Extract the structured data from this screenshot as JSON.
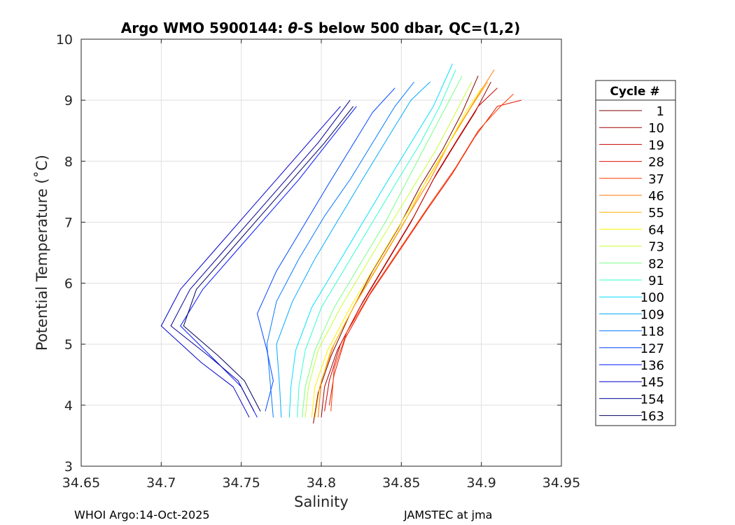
{
  "chart_data": {
    "type": "line",
    "title_prefix": "Argo WMO 5900144: ",
    "title_theta": "θ",
    "title_suffix": "-S below 500 dbar,  QC=(1,2)",
    "xlabel": "Salinity",
    "ylabel": "Potential Temperature (˚C)",
    "xlim": [
      34.65,
      34.95
    ],
    "ylim": [
      3,
      10
    ],
    "xticks": [
      34.65,
      34.7,
      34.75,
      34.8,
      34.85,
      34.9,
      34.95
    ],
    "xtick_labels": [
      "34.65",
      "34.7",
      "34.75",
      "34.8",
      "34.85",
      "34.9",
      "34.95"
    ],
    "yticks": [
      3,
      4,
      5,
      6,
      7,
      8,
      9,
      10
    ],
    "ytick_labels": [
      "3",
      "4",
      "5",
      "6",
      "7",
      "8",
      "9",
      "10"
    ],
    "grid": true,
    "legend_title": "Cycle #",
    "legend_position": "right-outside",
    "cycles": [
      "1",
      "10",
      "19",
      "28",
      "37",
      "46",
      "55",
      "64",
      "73",
      "82",
      "91",
      "100",
      "109",
      "118",
      "127",
      "136",
      "145",
      "154",
      "163"
    ],
    "cycle_colors": [
      "#7f0000",
      "#a00000",
      "#c80000",
      "#e61400",
      "#ff3c00",
      "#ff7800",
      "#ffb400",
      "#fff000",
      "#c8ff37",
      "#78ff87",
      "#32ffcd",
      "#00e1ff",
      "#00aaff",
      "#0078ff",
      "#0046ff",
      "#0014ff",
      "#0000cd",
      "#000096",
      "#00005f"
    ],
    "series": [
      {
        "name": "1",
        "x": [
          34.795,
          34.798,
          34.806,
          34.818,
          34.832,
          34.848,
          34.862,
          34.876,
          34.888,
          34.898
        ],
        "y": [
          3.7,
          4.2,
          4.8,
          5.5,
          6.2,
          6.9,
          7.6,
          8.2,
          8.8,
          9.4
        ]
      },
      {
        "name": "10",
        "x": [
          34.8,
          34.802,
          34.81,
          34.824,
          34.84,
          34.856,
          34.87,
          34.884,
          34.896,
          34.906
        ],
        "y": [
          3.8,
          4.3,
          4.9,
          5.6,
          6.3,
          7.0,
          7.7,
          8.3,
          8.8,
          9.3
        ]
      },
      {
        "name": "19",
        "x": [
          34.802,
          34.805,
          34.812,
          34.826,
          34.842,
          34.858,
          34.872,
          34.886,
          34.898,
          34.91
        ],
        "y": [
          3.9,
          4.4,
          5.0,
          5.7,
          6.4,
          7.1,
          7.8,
          8.4,
          8.9,
          9.2
        ]
      },
      {
        "name": "28",
        "x": [
          34.805,
          34.808,
          34.815,
          34.83,
          34.848,
          34.866,
          34.882,
          34.896,
          34.91,
          34.925
        ],
        "y": [
          4.0,
          4.5,
          5.1,
          5.8,
          6.5,
          7.2,
          7.8,
          8.4,
          8.9,
          9.0
        ]
      },
      {
        "name": "37",
        "x": [
          34.806,
          34.808,
          34.816,
          34.832,
          34.85,
          34.868,
          34.884,
          34.898,
          34.912,
          34.92
        ],
        "y": [
          3.9,
          4.6,
          5.2,
          5.9,
          6.6,
          7.3,
          7.9,
          8.5,
          8.9,
          9.1
        ]
      },
      {
        "name": "46",
        "x": [
          34.798,
          34.8,
          34.808,
          34.822,
          34.838,
          34.854,
          34.868,
          34.882,
          34.896,
          34.908
        ],
        "y": [
          3.8,
          4.4,
          5.0,
          5.7,
          6.4,
          7.1,
          7.7,
          8.4,
          9.0,
          9.5
        ]
      },
      {
        "name": "55",
        "x": [
          34.796,
          34.799,
          34.806,
          34.82,
          34.836,
          34.852,
          34.866,
          34.88,
          34.894,
          34.904
        ],
        "y": [
          3.8,
          4.3,
          4.9,
          5.6,
          6.3,
          7.0,
          7.7,
          8.3,
          8.9,
          9.3
        ]
      },
      {
        "name": "64",
        "x": [
          34.794,
          34.796,
          34.804,
          34.818,
          34.834,
          34.85,
          34.864,
          34.878,
          34.89,
          34.9
        ],
        "y": [
          3.8,
          4.3,
          4.9,
          5.6,
          6.3,
          7.0,
          7.6,
          8.2,
          8.8,
          9.2
        ]
      },
      {
        "name": "73",
        "x": [
          34.79,
          34.792,
          34.798,
          34.812,
          34.828,
          34.844,
          34.858,
          34.872,
          34.884,
          34.894
        ],
        "y": [
          3.8,
          4.3,
          4.9,
          5.6,
          6.3,
          7.0,
          7.6,
          8.2,
          8.8,
          9.3
        ]
      },
      {
        "name": "82",
        "x": [
          34.788,
          34.79,
          34.796,
          34.808,
          34.824,
          34.84,
          34.854,
          34.866,
          34.878,
          34.888
        ],
        "y": [
          3.8,
          4.3,
          4.9,
          5.6,
          6.3,
          7.0,
          7.7,
          8.3,
          8.9,
          9.4
        ]
      },
      {
        "name": "91",
        "x": [
          34.785,
          34.786,
          34.79,
          34.8,
          34.816,
          34.832,
          34.848,
          34.862,
          34.874,
          34.884
        ],
        "y": [
          3.8,
          4.3,
          4.9,
          5.6,
          6.3,
          7.0,
          7.7,
          8.3,
          8.9,
          9.5
        ]
      },
      {
        "name": "100",
        "x": [
          34.78,
          34.781,
          34.784,
          34.794,
          34.81,
          34.826,
          34.842,
          34.856,
          34.87,
          34.882
        ],
        "y": [
          3.8,
          4.3,
          4.9,
          5.6,
          6.3,
          7.0,
          7.7,
          8.3,
          8.9,
          9.6
        ]
      },
      {
        "name": "109",
        "x": [
          34.775,
          34.774,
          34.772,
          34.782,
          34.796,
          34.812,
          34.828,
          34.842,
          34.856,
          34.868
        ],
        "y": [
          3.8,
          4.3,
          5.0,
          5.7,
          6.4,
          7.1,
          7.8,
          8.4,
          9.0,
          9.3
        ]
      },
      {
        "name": "118",
        "x": [
          34.77,
          34.768,
          34.766,
          34.772,
          34.786,
          34.802,
          34.818,
          34.832,
          34.846,
          34.858
        ],
        "y": [
          3.8,
          4.4,
          5.0,
          5.7,
          6.4,
          7.1,
          7.7,
          8.3,
          8.9,
          9.3
        ]
      },
      {
        "name": "127",
        "x": [
          34.765,
          34.77,
          34.766,
          34.76,
          34.772,
          34.788,
          34.804,
          34.818,
          34.832,
          34.846
        ],
        "y": [
          3.9,
          4.4,
          4.9,
          5.5,
          6.2,
          6.9,
          7.6,
          8.2,
          8.8,
          9.2
        ]
      },
      {
        "name": "136",
        "x": [
          34.76,
          34.75,
          34.735,
          34.712,
          34.726,
          34.746,
          34.766,
          34.786,
          34.804,
          34.822
        ],
        "y": [
          3.8,
          4.3,
          4.7,
          5.3,
          5.9,
          6.5,
          7.1,
          7.7,
          8.3,
          8.9
        ]
      },
      {
        "name": "145",
        "x": [
          34.755,
          34.745,
          34.725,
          34.7,
          34.712,
          34.732,
          34.752,
          34.772,
          34.792,
          34.812
        ],
        "y": [
          3.8,
          4.3,
          4.7,
          5.3,
          5.9,
          6.5,
          7.1,
          7.7,
          8.3,
          8.9
        ]
      },
      {
        "name": "154",
        "x": [
          34.758,
          34.748,
          34.73,
          34.706,
          34.718,
          34.738,
          34.758,
          34.778,
          34.798,
          34.818
        ],
        "y": [
          3.9,
          4.4,
          4.8,
          5.3,
          5.9,
          6.5,
          7.1,
          7.7,
          8.3,
          9.0
        ]
      },
      {
        "name": "163",
        "x": [
          34.762,
          34.752,
          34.736,
          34.714,
          34.722,
          34.742,
          34.762,
          34.782,
          34.802,
          34.82
        ],
        "y": [
          3.9,
          4.4,
          4.8,
          5.3,
          5.9,
          6.5,
          7.1,
          7.7,
          8.3,
          8.9
        ]
      }
    ]
  },
  "footer": {
    "left": "WHOI Argo:14-Oct-2025",
    "right": "JAMSTEC at jma"
  }
}
